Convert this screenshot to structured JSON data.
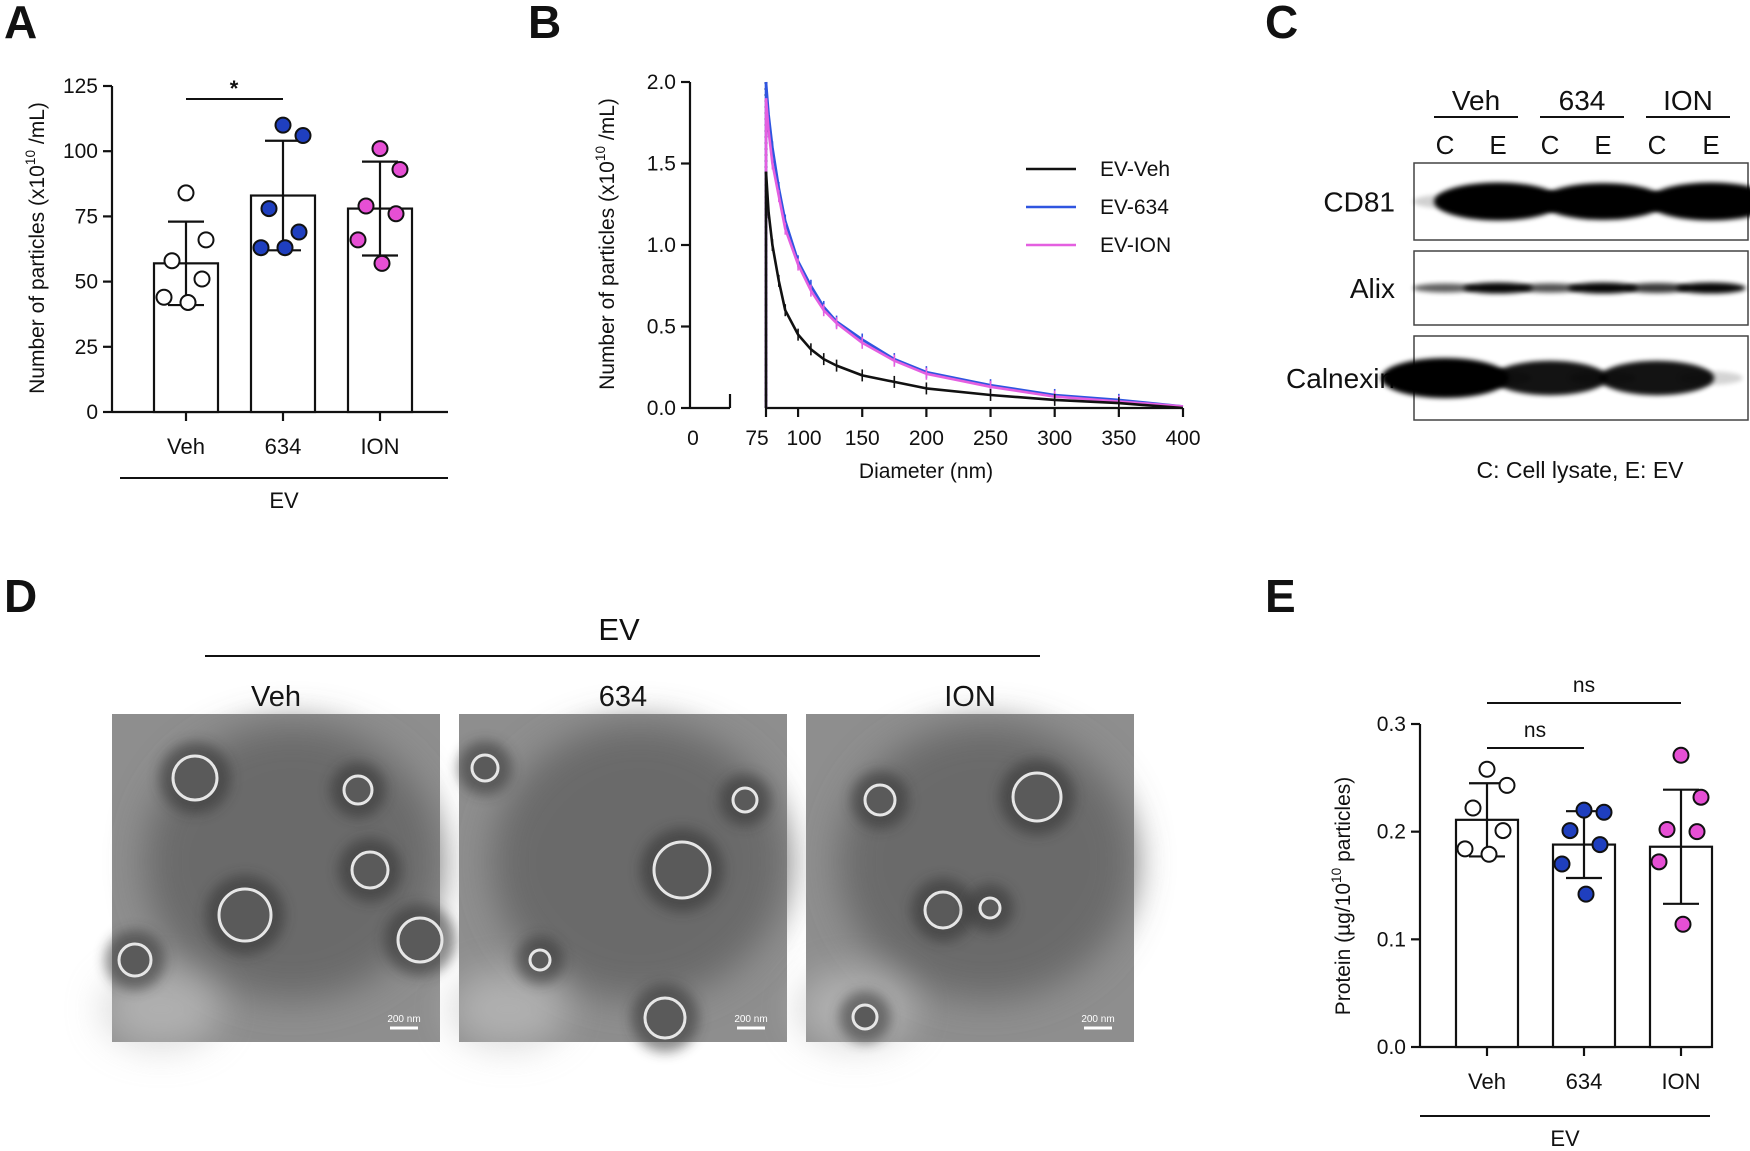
{
  "panel_letters": [
    "A",
    "B",
    "C",
    "D",
    "E"
  ],
  "colors": {
    "veh": "#ffffff",
    "c634": "#1f3fbf",
    "ion": "#e64fd4",
    "veh_line": "#111111",
    "line634": "#2f55e0",
    "lineION": "#e45fe0"
  },
  "chart_data": [
    {
      "panel": "A",
      "type": "bar",
      "ylabel": "Number of particles (x10^10 /mL)",
      "ylabel_main": "Number of particles (x10",
      "ylabel_sup": "10",
      "ylabel_tail": " /mL)",
      "ylim": [
        0,
        125
      ],
      "yticks": [
        "0",
        "25",
        "50",
        "75",
        "100",
        "125"
      ],
      "categories": [
        "Veh",
        "634",
        "ION"
      ],
      "group_label": "EV",
      "means": [
        57,
        83,
        78
      ],
      "sd": [
        16,
        21,
        18
      ],
      "points": [
        [
          84,
          66,
          58,
          51,
          44,
          42
        ],
        [
          110,
          106,
          78,
          69,
          63,
          63
        ],
        [
          101,
          93,
          79,
          76,
          66,
          57
        ]
      ],
      "significance": {
        "pair": [
          "Veh",
          "634"
        ],
        "label": "*"
      }
    },
    {
      "panel": "B",
      "type": "line",
      "xlabel": "Diameter (nm)",
      "ylabel": "Number of particles (x10^10 /mL)",
      "ylabel_main": "Number of particles (x10",
      "ylabel_sup": "10",
      "ylabel_tail": " /mL)",
      "ylim": [
        0,
        2.0
      ],
      "yticks": [
        "0.0",
        "0.5",
        "1.0",
        "1.5",
        "2.0"
      ],
      "xticks": [
        "75",
        "100",
        "150",
        "200",
        "250",
        "300",
        "350",
        "400"
      ],
      "x_break_tick": "0",
      "series": [
        {
          "name": "EV-Veh",
          "x": [
            75,
            77,
            80,
            85,
            90,
            100,
            110,
            120,
            130,
            150,
            175,
            200,
            250,
            300,
            350,
            400
          ],
          "values": [
            1.45,
            1.2,
            1.0,
            0.78,
            0.6,
            0.45,
            0.36,
            0.3,
            0.26,
            0.2,
            0.16,
            0.12,
            0.08,
            0.05,
            0.03,
            0.0
          ]
        },
        {
          "name": "EV-634",
          "x": [
            75,
            77,
            80,
            85,
            90,
            100,
            110,
            120,
            130,
            150,
            175,
            200,
            250,
            300,
            350,
            400
          ],
          "values": [
            2.0,
            1.8,
            1.6,
            1.35,
            1.15,
            0.9,
            0.75,
            0.62,
            0.53,
            0.42,
            0.3,
            0.22,
            0.14,
            0.08,
            0.05,
            0.01
          ]
        },
        {
          "name": "EV-ION",
          "x": [
            75,
            77,
            80,
            85,
            90,
            100,
            110,
            120,
            130,
            150,
            175,
            200,
            250,
            300,
            350,
            400
          ],
          "values": [
            1.9,
            1.7,
            1.5,
            1.3,
            1.1,
            0.88,
            0.72,
            0.6,
            0.52,
            0.4,
            0.29,
            0.21,
            0.13,
            0.07,
            0.04,
            0.01
          ]
        }
      ]
    },
    {
      "panel": "E",
      "type": "bar",
      "ylabel": "Protein (µg/10^10 particles)",
      "ylabel_main": "Protein (µg/10",
      "ylabel_sup": "10",
      "ylabel_tail": " particles)",
      "ylim": [
        0,
        0.3
      ],
      "yticks": [
        "0.0",
        "0.1",
        "0.2",
        "0.3"
      ],
      "categories": [
        "Veh",
        "634",
        "ION"
      ],
      "group_label": "EV",
      "means": [
        0.211,
        0.188,
        0.186
      ],
      "sd": [
        0.034,
        0.031,
        0.053
      ],
      "points": [
        [
          0.258,
          0.243,
          0.222,
          0.201,
          0.184,
          0.179
        ],
        [
          0.22,
          0.218,
          0.201,
          0.188,
          0.17,
          0.142
        ],
        [
          0.271,
          0.232,
          0.202,
          0.2,
          0.172,
          0.114
        ]
      ],
      "significance": [
        {
          "pair": [
            "Veh",
            "634"
          ],
          "label": "ns"
        },
        {
          "pair": [
            "Veh",
            "ION"
          ],
          "label": "ns"
        }
      ]
    }
  ],
  "western_blot": {
    "groups": [
      "Veh",
      "634",
      "ION"
    ],
    "lanes": [
      "C",
      "E",
      "C",
      "E",
      "C",
      "E"
    ],
    "rows": [
      "CD81",
      "Alix",
      "Calnexin"
    ],
    "legend": "C: Cell lysate,  E: EV",
    "intensity": {
      "CD81": [
        0.06,
        1.0,
        0.12,
        0.95,
        0.12,
        1.0
      ],
      "Alix": [
        0.5,
        0.85,
        0.55,
        0.85,
        0.65,
        0.85
      ],
      "Calnexin": [
        1.0,
        0.12,
        0.8,
        0.1,
        0.8,
        0.05
      ]
    }
  },
  "tem": {
    "group_label": "EV",
    "titles": [
      "Veh",
      "634",
      "ION"
    ],
    "scale_bar": "200 nm"
  }
}
